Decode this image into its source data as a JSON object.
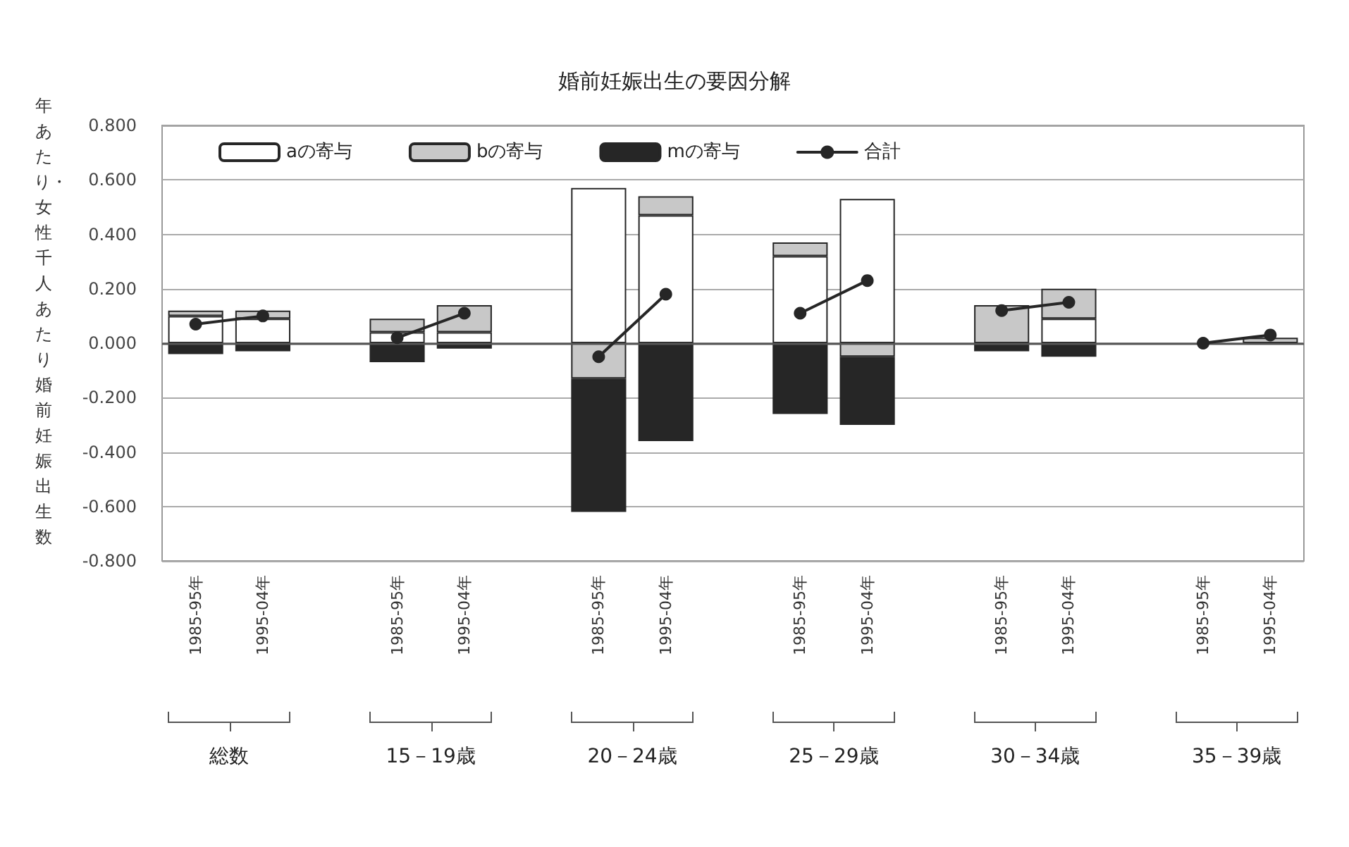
{
  "chart_data": {
    "type": "bar",
    "title": "婚前妊娠出生の要因分解",
    "ylabel": "年あたり・女性千人あたり婚前妊娠出生数",
    "categories": [
      "1985-95年",
      "1995-04年",
      null,
      "1985-95年",
      "1995-04年",
      null,
      "1985-95年",
      "1995-04年",
      null,
      "1985-95年",
      "1995-04年",
      null,
      "1985-95年",
      "1995-04年",
      null,
      "1985-95年",
      "1995-04年"
    ],
    "stacked": true,
    "series": [
      {
        "name": "aの寄与",
        "color": "#ffffff",
        "values": [
          0.1,
          0.09,
          null,
          0.04,
          0.04,
          null,
          0.57,
          0.47,
          null,
          0.32,
          0.53,
          null,
          null,
          0.09,
          null,
          null,
          null
        ]
      },
      {
        "name": "bの寄与",
        "color": "#c8c8c8",
        "values": [
          0.02,
          0.03,
          null,
          0.05,
          0.1,
          null,
          -0.13,
          0.07,
          null,
          0.05,
          -0.05,
          null,
          0.14,
          0.11,
          null,
          null,
          0.02
        ]
      },
      {
        "name": "mの寄与",
        "color": "#262626",
        "values": [
          -0.04,
          -0.03,
          null,
          -0.07,
          -0.02,
          null,
          -0.49,
          -0.36,
          null,
          -0.26,
          -0.25,
          null,
          -0.03,
          -0.05,
          null,
          null,
          null
        ]
      },
      {
        "name": "合計",
        "type": "line",
        "color": "#262626",
        "values": [
          0.07,
          0.1,
          null,
          0.02,
          0.11,
          null,
          -0.05,
          0.18,
          null,
          0.11,
          0.23,
          null,
          0.12,
          0.15,
          null,
          0.0,
          0.03
        ]
      }
    ],
    "annotations": [
      "総数",
      "15－19歳",
      "20－24歳",
      "25－29歳",
      "30－34歳",
      "35－39歳"
    ],
    "ylim": [
      -0.8,
      0.8
    ],
    "yticks": [
      {
        "value": -0.8,
        "label": "-0.800"
      },
      {
        "value": -0.6,
        "label": "-0.600"
      },
      {
        "value": -0.4,
        "label": "-0.400"
      },
      {
        "value": -0.2,
        "label": "-0.200"
      },
      {
        "value": 0,
        "label": "0.000"
      },
      {
        "value": 0.2,
        "label": "0.200"
      },
      {
        "value": 0.4,
        "label": "0.400"
      },
      {
        "value": 0.6,
        "label": "0.600"
      },
      {
        "value": 0.8,
        "label": "0.800"
      }
    ],
    "grid": "y",
    "legend": "top",
    "marker": "circle",
    "line_style": "solid"
  }
}
